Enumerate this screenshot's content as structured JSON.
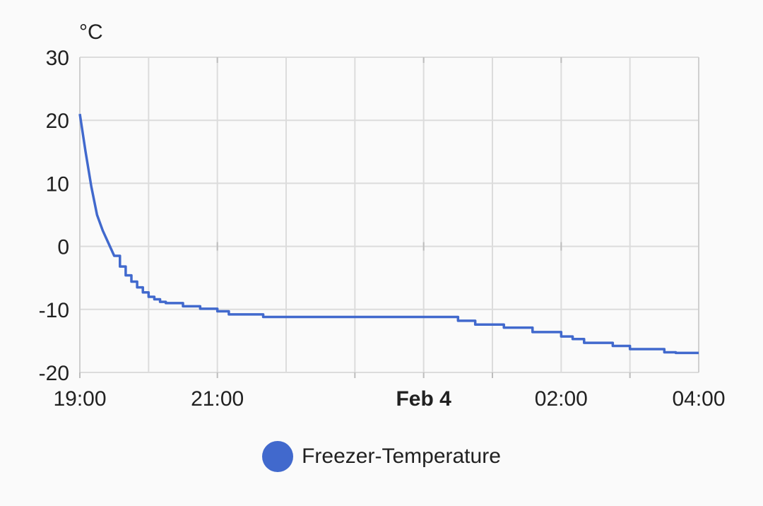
{
  "chart_data": {
    "type": "line",
    "ylabel": "°C",
    "ylim": [
      -20,
      30
    ],
    "yticks": [
      30,
      20,
      10,
      0,
      -10,
      -20
    ],
    "xlim": [
      "19:00",
      "04:00"
    ],
    "xticks": [
      {
        "label": "19:00",
        "bold": false
      },
      {
        "label": "21:00",
        "bold": false
      },
      {
        "label": "Feb 4",
        "bold": true
      },
      {
        "label": "02:00",
        "bold": false
      },
      {
        "label": "04:00",
        "bold": false
      }
    ],
    "grid": true,
    "legend_position": "bottom",
    "series": [
      {
        "name": "Freezer-Temperature",
        "color": "#4169cd",
        "step": true,
        "x": [
          "19:00",
          "19:05",
          "19:10",
          "19:15",
          "19:20",
          "19:25",
          "19:30",
          "19:35",
          "19:40",
          "19:45",
          "19:50",
          "19:55",
          "20:00",
          "20:05",
          "20:10",
          "20:15",
          "20:30",
          "20:45",
          "21:00",
          "21:10",
          "21:40",
          "22:00",
          "22:30",
          "23:00",
          "23:30",
          "00:00",
          "00:30",
          "00:45",
          "01:10",
          "01:35",
          "02:00",
          "02:10",
          "02:20",
          "02:45",
          "03:00",
          "03:15",
          "03:30",
          "03:40",
          "04:00"
        ],
        "values": [
          21,
          15,
          9.5,
          5,
          2.5,
          0.5,
          -1.5,
          -3.2,
          -4.6,
          -5.6,
          -6.5,
          -7.3,
          -8.0,
          -8.4,
          -8.8,
          -9.0,
          -9.5,
          -9.9,
          -10.3,
          -10.8,
          -11.2,
          -11.2,
          -11.2,
          -11.2,
          -11.2,
          -11.2,
          -11.8,
          -12.4,
          -12.9,
          -13.6,
          -14.3,
          -14.7,
          -15.3,
          -15.8,
          -16.3,
          -16.3,
          -16.8,
          -16.9,
          -16.9
        ]
      }
    ]
  }
}
